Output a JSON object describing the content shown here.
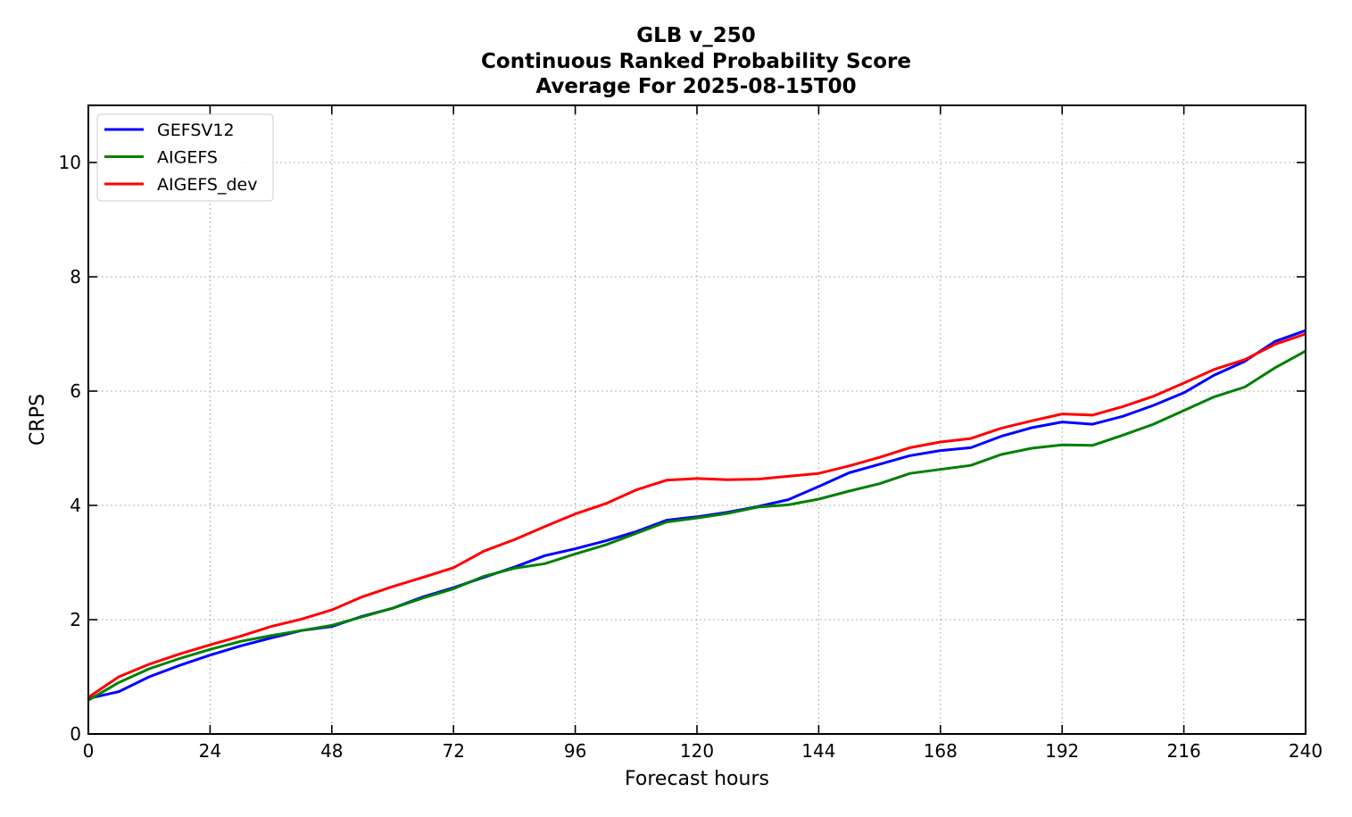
{
  "chart_data": {
    "type": "line",
    "title_lines": [
      "GLB v_250",
      "Continuous Ranked Probability Score",
      "Average For 2025-08-15T00"
    ],
    "xlabel": "Forecast hours",
    "ylabel": "CRPS",
    "xlim": [
      0,
      240
    ],
    "ylim": [
      0,
      11
    ],
    "xticks": [
      0,
      24,
      48,
      72,
      96,
      120,
      144,
      168,
      192,
      216,
      240
    ],
    "yticks": [
      0,
      2,
      4,
      6,
      8,
      10
    ],
    "grid": true,
    "legend_position": "upper-left",
    "x": [
      0,
      6,
      12,
      18,
      24,
      30,
      36,
      42,
      48,
      54,
      60,
      66,
      72,
      78,
      84,
      90,
      96,
      102,
      108,
      114,
      120,
      126,
      132,
      138,
      144,
      150,
      156,
      162,
      168,
      174,
      180,
      186,
      192,
      198,
      204,
      210,
      216,
      222,
      228,
      234,
      240
    ],
    "series": [
      {
        "name": "GEFSV12",
        "color": "#0000ff",
        "values": [
          0.62,
          0.74,
          1.0,
          1.2,
          1.38,
          1.54,
          1.68,
          1.81,
          1.88,
          2.06,
          2.2,
          2.4,
          2.56,
          2.74,
          2.92,
          3.12,
          3.24,
          3.38,
          3.54,
          3.74,
          3.8,
          3.88,
          3.98,
          4.1,
          4.33,
          4.57,
          4.72,
          4.87,
          4.96,
          5.01,
          5.21,
          5.36,
          5.46,
          5.42,
          5.56,
          5.75,
          5.97,
          6.28,
          6.52,
          6.87,
          7.06
        ]
      },
      {
        "name": "AIGEFS",
        "color": "#008000",
        "values": [
          0.59,
          0.9,
          1.14,
          1.32,
          1.48,
          1.62,
          1.72,
          1.81,
          1.9,
          2.05,
          2.2,
          2.38,
          2.54,
          2.76,
          2.9,
          2.98,
          3.15,
          3.31,
          3.51,
          3.71,
          3.78,
          3.86,
          3.97,
          4.01,
          4.11,
          4.25,
          4.38,
          4.56,
          4.63,
          4.7,
          4.89,
          5.0,
          5.06,
          5.05,
          5.23,
          5.42,
          5.66,
          5.9,
          6.07,
          6.41,
          6.7
        ]
      },
      {
        "name": "AIGEFS_dev",
        "color": "#ff0000",
        "values": [
          0.64,
          1.0,
          1.22,
          1.4,
          1.56,
          1.71,
          1.88,
          2.01,
          2.17,
          2.4,
          2.58,
          2.74,
          2.91,
          3.2,
          3.4,
          3.63,
          3.85,
          4.03,
          4.27,
          4.44,
          4.47,
          4.45,
          4.46,
          4.51,
          4.56,
          4.69,
          4.84,
          5.01,
          5.11,
          5.17,
          5.35,
          5.48,
          5.6,
          5.58,
          5.73,
          5.91,
          6.14,
          6.38,
          6.55,
          6.82,
          7.0
        ]
      }
    ]
  }
}
